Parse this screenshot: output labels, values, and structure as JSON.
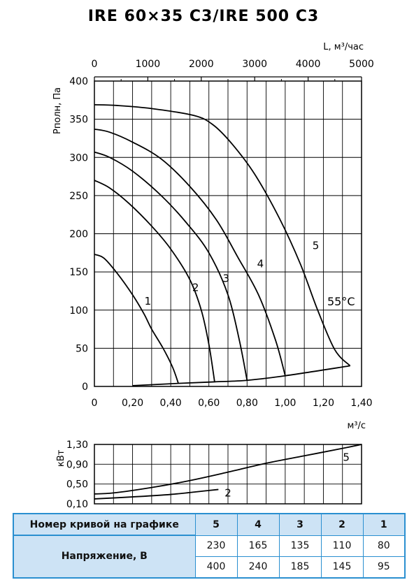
{
  "title": "IRE 60×35 C3/IRE 500 C3",
  "chart_data": [
    {
      "type": "line",
      "ylabel": "Рполн, Па",
      "xlabel_top": "L, м³/час",
      "xlabel_bottom": "м³/с",
      "ylim": [
        0,
        400
      ],
      "xlim": [
        0,
        1.4
      ],
      "x_top_lim": [
        0,
        5000
      ],
      "y_ticks": [
        "0",
        "50",
        "100",
        "150",
        "200",
        "250",
        "300",
        "350",
        "400"
      ],
      "x_ticks_bottom": [
        "0",
        "0,20",
        "0,40",
        "0,60",
        "0,80",
        "1,00",
        "1,20",
        "1,40"
      ],
      "x_ticks_top": [
        "0",
        "1000",
        "2000",
        "3000",
        "4000",
        "5000"
      ],
      "grid": true,
      "annotation": "55°C",
      "series": [
        {
          "name": "1",
          "x": [
            0,
            0.05,
            0.12,
            0.2,
            0.26,
            0.3,
            0.36,
            0.41,
            0.44
          ],
          "y": [
            173,
            168,
            148,
            120,
            95,
            75,
            50,
            25,
            4
          ]
        },
        {
          "name": "2",
          "x": [
            0,
            0.08,
            0.18,
            0.3,
            0.4,
            0.5,
            0.56,
            0.6,
            0.63
          ],
          "y": [
            270,
            260,
            240,
            210,
            180,
            140,
            100,
            55,
            6
          ]
        },
        {
          "name": "3",
          "x": [
            0,
            0.08,
            0.2,
            0.35,
            0.48,
            0.6,
            0.7,
            0.76,
            0.8
          ],
          "y": [
            307,
            300,
            282,
            250,
            215,
            175,
            120,
            60,
            8
          ]
        },
        {
          "name": "4",
          "x": [
            0,
            0.08,
            0.2,
            0.35,
            0.5,
            0.64,
            0.75,
            0.86,
            0.95,
            1.0
          ],
          "y": [
            337,
            333,
            320,
            298,
            262,
            218,
            170,
            120,
            60,
            14
          ]
        },
        {
          "name": "5",
          "x": [
            0,
            0.12,
            0.3,
            0.52,
            0.62,
            0.72,
            0.84,
            0.97,
            1.08,
            1.17,
            1.26,
            1.34
          ],
          "y": [
            369,
            368,
            364,
            355,
            343,
            318,
            278,
            220,
            160,
            100,
            48,
            27
          ]
        },
        {
          "name": "",
          "x": [
            0.2,
            0.44,
            0.63,
            0.8,
            1.0,
            1.34
          ],
          "y": [
            1,
            4,
            6,
            8,
            14,
            27
          ]
        }
      ],
      "labels_at": [
        {
          "text": "1",
          "x": 0.28,
          "y": 107
        },
        {
          "text": "2",
          "x": 0.53,
          "y": 125
        },
        {
          "text": "3",
          "x": 0.69,
          "y": 137
        },
        {
          "text": "4",
          "x": 0.87,
          "y": 156
        },
        {
          "text": "5",
          "x": 1.16,
          "y": 180
        }
      ]
    },
    {
      "type": "line",
      "ylabel": "кВт",
      "ylim": [
        0.1,
        1.3
      ],
      "xlim": [
        0,
        1.4
      ],
      "y_ticks": [
        "0,10",
        "0,50",
        "0,90",
        "1,30"
      ],
      "series": [
        {
          "name": "5",
          "x": [
            0,
            0.1,
            0.3,
            0.5,
            0.7,
            0.9,
            1.1,
            1.3,
            1.4
          ],
          "y": [
            0.3,
            0.32,
            0.43,
            0.57,
            0.74,
            0.92,
            1.07,
            1.22,
            1.3
          ]
        },
        {
          "name": "2",
          "x": [
            0,
            0.2,
            0.4,
            0.6,
            0.65
          ],
          "y": [
            0.2,
            0.24,
            0.29,
            0.37,
            0.39
          ]
        }
      ]
    }
  ],
  "table": {
    "header_label": "Номер кривой на графике",
    "curves": [
      "5",
      "4",
      "3",
      "2",
      "1"
    ],
    "row_label": "Напряжение, В",
    "row1": [
      "230",
      "165",
      "135",
      "110",
      "80"
    ],
    "row2": [
      "400",
      "240",
      "185",
      "145",
      "95"
    ]
  }
}
